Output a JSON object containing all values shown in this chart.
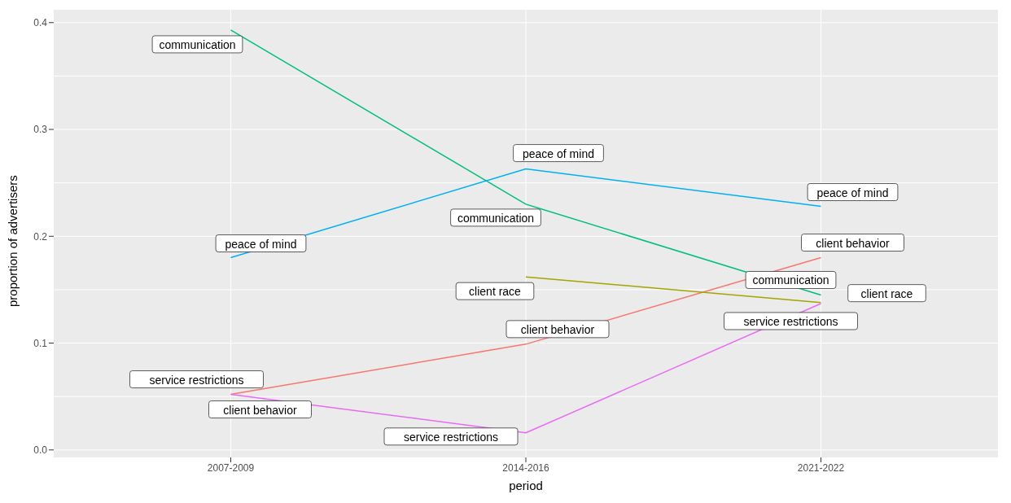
{
  "chart_data": {
    "type": "line",
    "xlabel": "period",
    "ylabel": "proportion of advertisers",
    "categories": [
      "2007-2009",
      "2014-2016",
      "2021-2022"
    ],
    "series": [
      {
        "name": "client behavior",
        "color": "#f8766d",
        "values": [
          0.052,
          0.099,
          0.18
        ]
      },
      {
        "name": "client race",
        "color": "#a3a500",
        "values": [
          null,
          0.162,
          0.138
        ]
      },
      {
        "name": "communication",
        "color": "#00bf7d",
        "values": [
          0.393,
          0.23,
          0.145
        ]
      },
      {
        "name": "peace of mind",
        "color": "#00b0f6",
        "values": [
          0.18,
          0.263,
          0.228
        ]
      },
      {
        "name": "service restrictions",
        "color": "#e76bf3",
        "values": [
          0.052,
          0.016,
          0.137
        ]
      }
    ],
    "ylim": [
      -0.007,
      0.412
    ],
    "yticks": [
      {
        "value": 0,
        "label": "0.0"
      },
      {
        "value": 0.1,
        "label": "0.1"
      },
      {
        "value": 0.2,
        "label": "0.2"
      },
      {
        "value": 0.3,
        "label": "0.3"
      },
      {
        "value": 0.4,
        "label": "0.4"
      }
    ],
    "grid": true,
    "marker": "none",
    "line_style": "solid"
  }
}
